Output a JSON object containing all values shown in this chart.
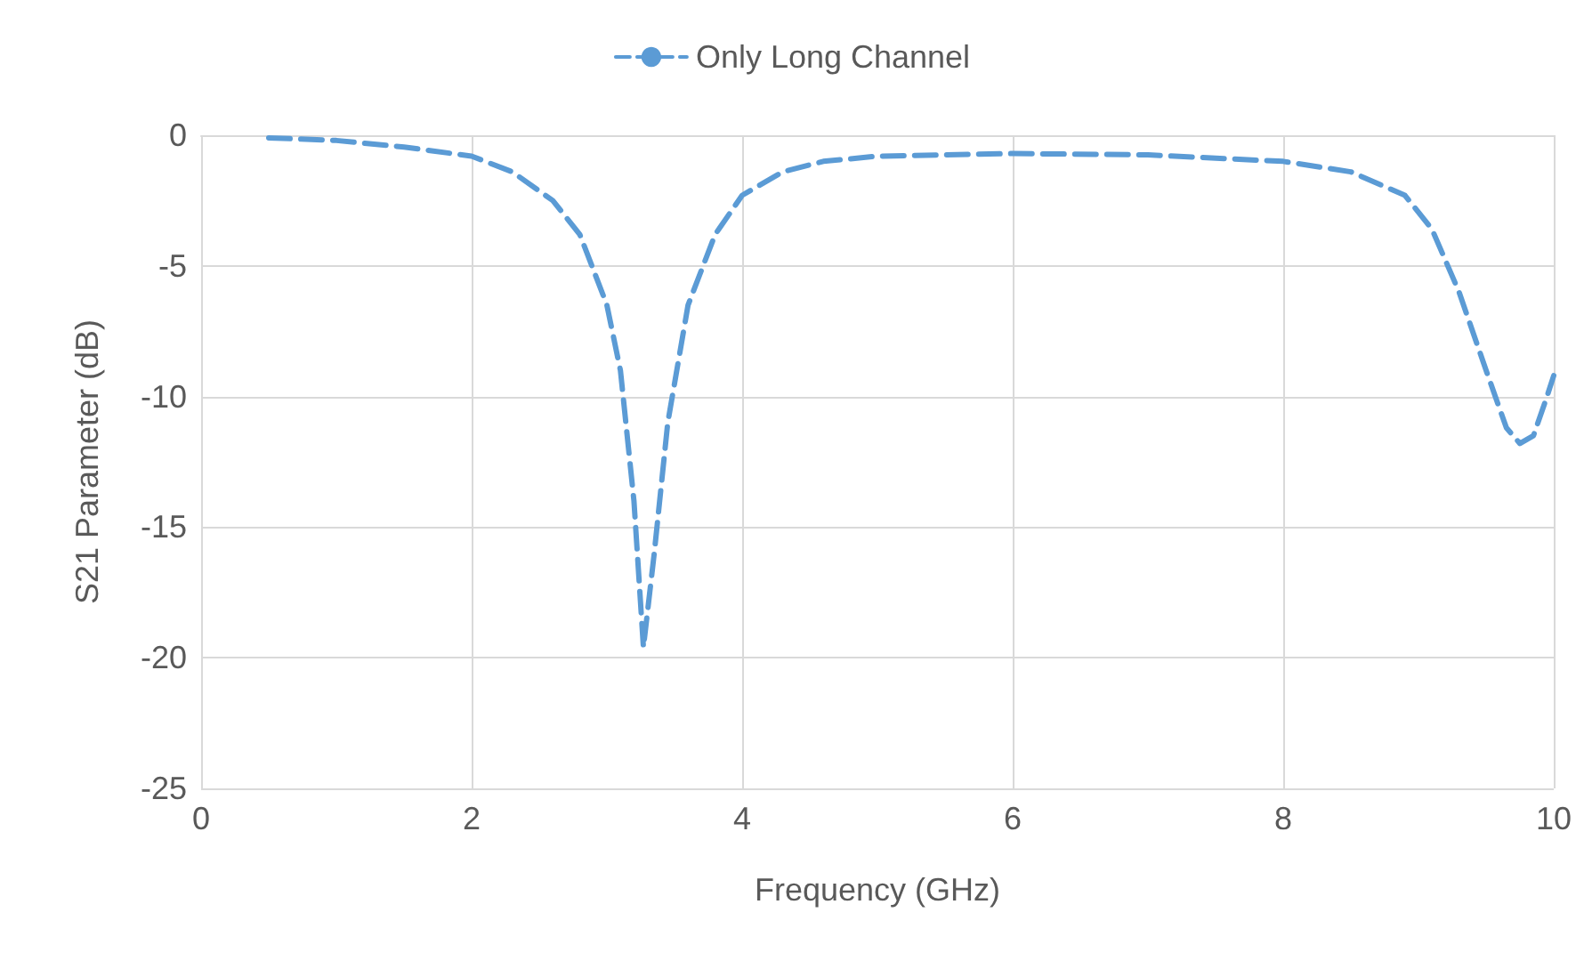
{
  "chart_data": {
    "type": "line",
    "xlabel": "Frequency (GHz)",
    "ylabel": "S21 Parameter (dB)",
    "x": [
      0.5,
      1,
      1.5,
      2,
      2.3,
      2.6,
      2.8,
      3.0,
      3.1,
      3.2,
      3.27,
      3.35,
      3.45,
      3.6,
      3.8,
      4.0,
      4.3,
      4.6,
      5,
      6,
      7,
      8,
      8.5,
      8.9,
      9.1,
      9.3,
      9.5,
      9.65,
      9.75,
      9.85,
      9.95,
      10
    ],
    "series": [
      {
        "name": "Only Long Channel",
        "color": "#5b9bd5",
        "values": [
          -0.1,
          -0.2,
          -0.45,
          -0.8,
          -1.4,
          -2.5,
          -3.8,
          -6.5,
          -9,
          -14,
          -19.6,
          -16,
          -11,
          -6.5,
          -3.8,
          -2.3,
          -1.4,
          -1.0,
          -0.8,
          -0.7,
          -0.75,
          -1.0,
          -1.4,
          -2.3,
          -3.6,
          -6,
          -9,
          -11.2,
          -11.8,
          -11.5,
          -10,
          -9.2
        ]
      }
    ],
    "xlim": [
      0,
      10
    ],
    "xticks": [
      0,
      2,
      4,
      6,
      8,
      10
    ],
    "ylim": [
      -25,
      0
    ],
    "yticks": [
      -25,
      -20,
      -15,
      -10,
      -5,
      0
    ],
    "grid": true,
    "legend": "top",
    "marker": "none",
    "line_style": "dashed"
  }
}
